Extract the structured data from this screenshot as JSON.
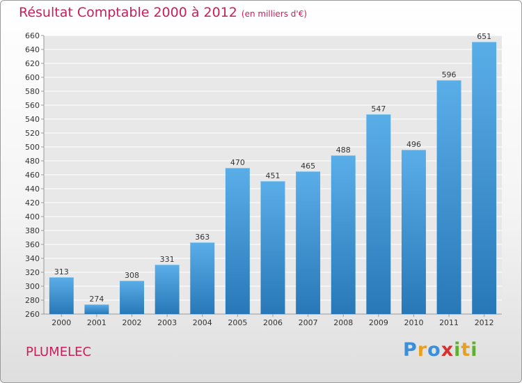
{
  "header": {
    "title": "Résultat Comptable 2000 à 2012",
    "subtitle": "(en milliers d'€)"
  },
  "footer": {
    "commune": "PLUMELEC",
    "logo_text": "Proxiti"
  },
  "colors": {
    "title": "#c81e5a",
    "bar_light": "#5aaee8",
    "bar_dark": "#2878b8",
    "logo_letters": [
      "#3a8fd8",
      "#e8a020",
      "#3a8fd8",
      "#d83030",
      "#60b030",
      "#e8a020",
      "#60b030"
    ]
  },
  "chart_data": {
    "type": "bar",
    "title": "Résultat Comptable 2000 à 2012",
    "subtitle": "(en milliers d'€)",
    "categories": [
      "2000",
      "2001",
      "2002",
      "2003",
      "2004",
      "2005",
      "2006",
      "2007",
      "2008",
      "2009",
      "2010",
      "2011",
      "2012"
    ],
    "values": [
      313,
      274,
      308,
      331,
      363,
      470,
      451,
      465,
      488,
      547,
      496,
      596,
      651
    ],
    "xlabel": "",
    "ylabel": "",
    "ylim": [
      260,
      660
    ],
    "yticks": [
      260,
      280,
      300,
      320,
      340,
      360,
      380,
      400,
      420,
      440,
      460,
      480,
      500,
      520,
      540,
      560,
      580,
      600,
      620,
      640,
      660
    ],
    "grid": true,
    "legend": "none"
  }
}
